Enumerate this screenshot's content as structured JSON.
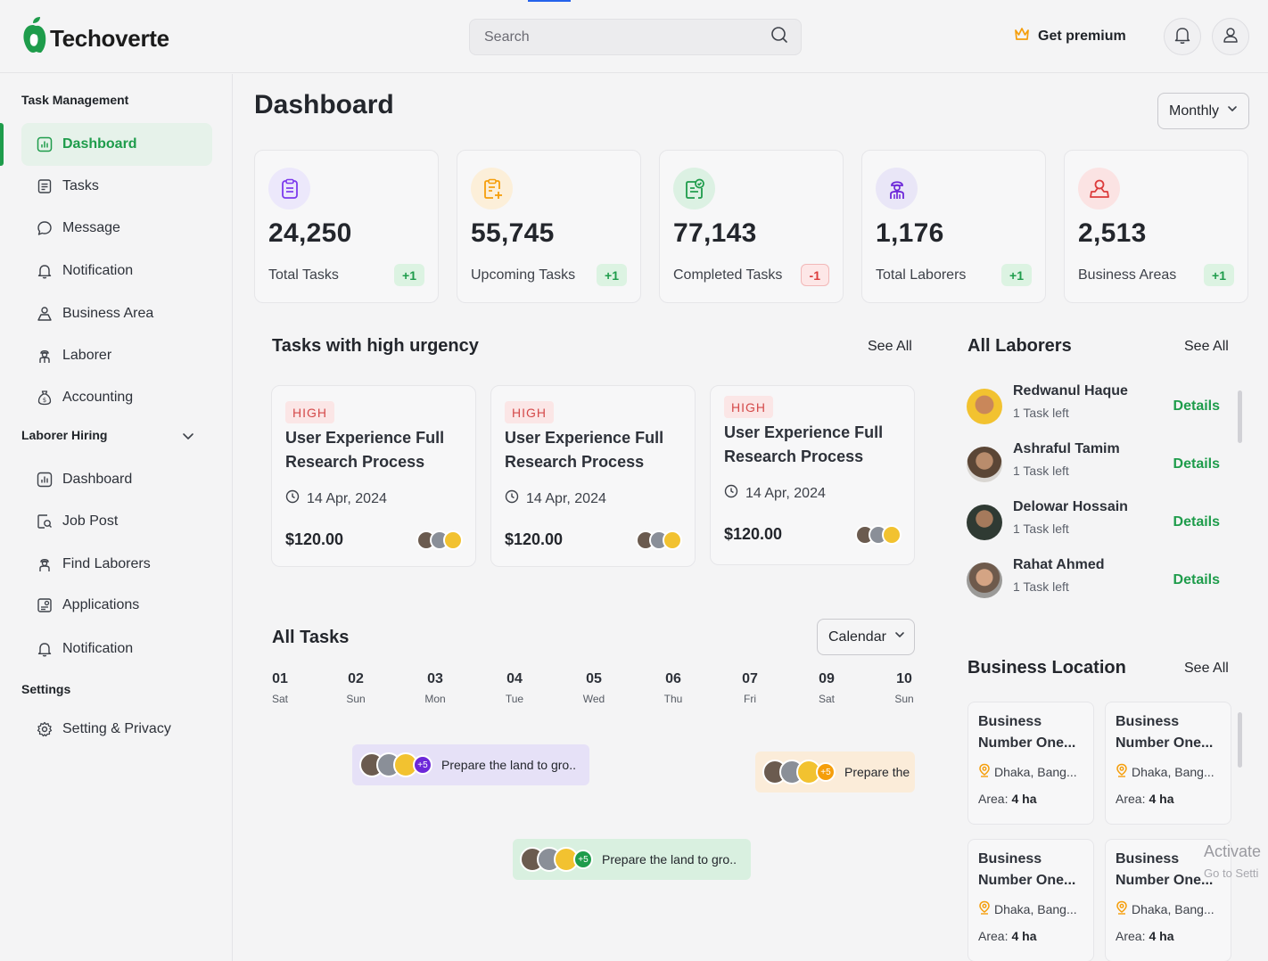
{
  "header": {
    "logo_text": "Techoverte",
    "search_placeholder": "Search",
    "premium_label": "Get premium"
  },
  "sidebar": {
    "task_section": "Task Management",
    "task_items": [
      {
        "label": "Dashboard",
        "icon": "chart-icon"
      },
      {
        "label": "Tasks",
        "icon": "tasks-icon"
      },
      {
        "label": "Message",
        "icon": "message-icon"
      },
      {
        "label": "Notification",
        "icon": "bell-icon"
      },
      {
        "label": "Business Area",
        "icon": "business-area-icon"
      },
      {
        "label": "Laborer",
        "icon": "laborer-icon"
      },
      {
        "label": "Accounting",
        "icon": "money-bag-icon"
      }
    ],
    "hiring_section": "Laborer Hiring",
    "hiring_items": [
      {
        "label": "Dashboard",
        "icon": "chart-icon"
      },
      {
        "label": "Job Post",
        "icon": "job-post-icon"
      },
      {
        "label": "Find Laborers",
        "icon": "find-laborer-icon"
      },
      {
        "label": "Applications",
        "icon": "applications-icon"
      },
      {
        "label": "Notification",
        "icon": "bell-icon"
      }
    ],
    "settings_section": "Settings",
    "settings_items": [
      {
        "label": "Setting & Privacy",
        "icon": "gear-icon"
      }
    ]
  },
  "main": {
    "title": "Dashboard",
    "period": "Monthly",
    "stats": [
      {
        "value": "24,250",
        "label": "Total Tasks",
        "change": "+1",
        "color": "#7c3aed",
        "bg": "#ece8fb"
      },
      {
        "value": "55,745",
        "label": "Upcoming Tasks",
        "change": "+1",
        "color": "#f59e0b",
        "bg": "#fcefd9"
      },
      {
        "value": "77,143",
        "label": "Completed Tasks",
        "change": "-1",
        "color": "#1e9c4b",
        "bg": "#dcf1e3"
      },
      {
        "value": "1,176",
        "label": "Total Laborers",
        "change": "+1",
        "color": "#6d28d9",
        "bg": "#e9e6f7"
      },
      {
        "value": "2,513",
        "label": "Business Areas",
        "change": "+1",
        "color": "#dc3b3b",
        "bg": "#fbe3e3"
      }
    ],
    "urgency": {
      "title": "Tasks with high urgency",
      "see_all": "See All",
      "tasks": [
        {
          "priority": "HIGH",
          "title": "User Experience Full Research Process",
          "date": "14 Apr, 2024",
          "price": "$120.00"
        },
        {
          "priority": "HIGH",
          "title": "User Experience Full Research Process",
          "date": "14 Apr, 2024",
          "price": "$120.00"
        },
        {
          "priority": "HIGH",
          "title": "User Experience Full Research Process",
          "date": "14 Apr, 2024",
          "price": "$120.00"
        }
      ]
    },
    "all_tasks": {
      "title": "All Tasks",
      "view": "Calendar",
      "days": [
        {
          "num": "01",
          "wd": "Sat"
        },
        {
          "num": "02",
          "wd": "Sun"
        },
        {
          "num": "03",
          "wd": "Mon"
        },
        {
          "num": "04",
          "wd": "Tue"
        },
        {
          "num": "05",
          "wd": "Wed"
        },
        {
          "num": "06",
          "wd": "Thu"
        },
        {
          "num": "07",
          "wd": "Fri"
        },
        {
          "num": "09",
          "wd": "Sat"
        },
        {
          "num": "10",
          "wd": "Sun"
        }
      ],
      "events": [
        {
          "label": "Prepare the land to gro..",
          "more": "+5"
        },
        {
          "label": "Prepare the",
          "more": "+5"
        },
        {
          "label": "Prepare the land to gro..",
          "more": "+5"
        }
      ]
    },
    "laborers": {
      "title": "All Laborers",
      "see_all": "See All",
      "details_label": "Details",
      "items": [
        {
          "name": "Redwanul Haque",
          "sub": "1 Task left"
        },
        {
          "name": "Ashraful Tamim",
          "sub": "1 Task left"
        },
        {
          "name": "Delowar Hossain",
          "sub": "1 Task left"
        },
        {
          "name": "Rahat Ahmed",
          "sub": "1 Task left"
        }
      ]
    },
    "locations": {
      "title": "Business Location",
      "see_all": "See All",
      "area_label": "Area:",
      "items": [
        {
          "name": "Business Number One...",
          "addr": "Dhaka, Bang...",
          "area": "4 ha"
        },
        {
          "name": "Business Number One...",
          "addr": "Dhaka, Bang...",
          "area": "4 ha"
        },
        {
          "name": "Business Number One...",
          "addr": "Dhaka, Bang...",
          "area": "4 ha"
        },
        {
          "name": "Business Number One...",
          "addr": "Dhaka, Bang...",
          "area": "4 ha"
        }
      ]
    }
  },
  "watermark": {
    "line1": "Activate",
    "line2": "Go to Setti"
  }
}
